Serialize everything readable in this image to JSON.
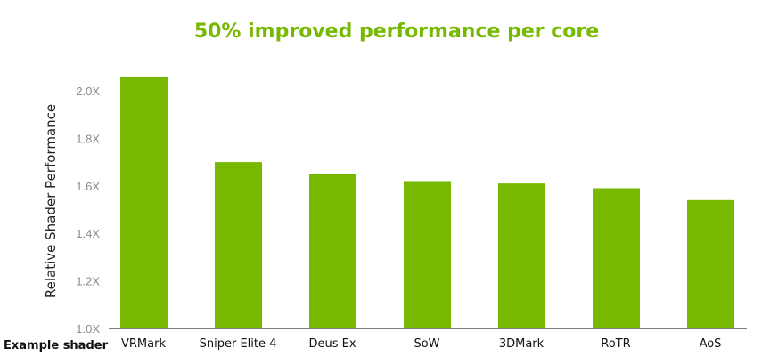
{
  "chart_data": {
    "type": "bar",
    "title": "50% improved performance per core",
    "xlabel": "Example shader",
    "ylabel": "Relative Shader Performance",
    "categories": [
      "VRMark",
      "Sniper Elite 4",
      "Deus Ex",
      "SoW",
      "3DMark",
      "RoTR",
      "AoS"
    ],
    "values": [
      2.06,
      1.7,
      1.65,
      1.62,
      1.61,
      1.59,
      1.54
    ],
    "ylim": [
      1.0,
      2.0
    ],
    "yticks": [
      "1.0X",
      "1.2X",
      "1.4X",
      "1.6X",
      "1.8X",
      "2.0X"
    ],
    "grid": false,
    "legend": "none",
    "colors": {
      "bar": "#76b900",
      "title": "#76b900",
      "axis": "#7f7f7f"
    }
  }
}
